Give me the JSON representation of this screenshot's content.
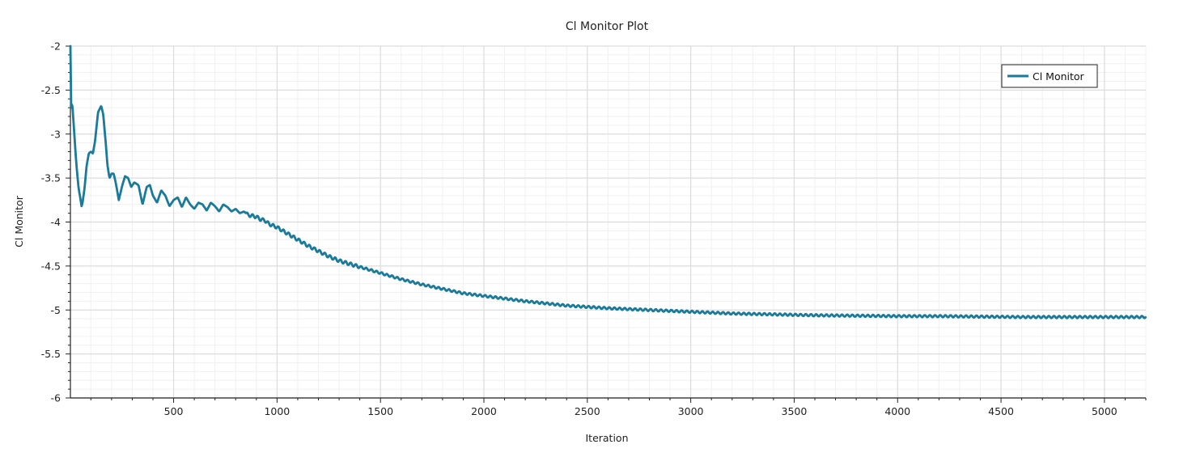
{
  "chart_data": {
    "type": "line",
    "title": "Cl Monitor Plot",
    "xlabel": "Iteration",
    "ylabel": "Cl Monitor",
    "xlim": [
      1,
      5200
    ],
    "ylim": [
      -6,
      -2
    ],
    "x_ticks": [
      500,
      1000,
      1500,
      2000,
      2500,
      3000,
      3500,
      4000,
      4500,
      5000
    ],
    "y_ticks": [
      -2,
      -2.5,
      -3,
      -3.5,
      -4,
      -4.5,
      -5,
      -5.5,
      -6
    ],
    "grid": true,
    "legend_position": "top-right",
    "series": [
      {
        "name": "Cl Monitor",
        "color": "#1a7a9a",
        "x": [
          1,
          5,
          10,
          20,
          30,
          40,
          55,
          60,
          70,
          80,
          90,
          100,
          110,
          120,
          135,
          150,
          160,
          170,
          180,
          190,
          200,
          210,
          220,
          235,
          250,
          265,
          280,
          295,
          310,
          330,
          350,
          370,
          385,
          400,
          420,
          440,
          460,
          480,
          500,
          520,
          540,
          560,
          580,
          600,
          620,
          640,
          660,
          680,
          700,
          720,
          740,
          760,
          780,
          800,
          820,
          840,
          860,
          880,
          900,
          920,
          940,
          960,
          980,
          1000,
          1050,
          1100,
          1150,
          1200,
          1250,
          1300,
          1400,
          1500,
          1600,
          1700,
          1800,
          1900,
          2000,
          2200,
          2400,
          2600,
          2800,
          3000,
          3200,
          3400,
          3600,
          3800,
          4000,
          4200,
          4400,
          4600,
          4800,
          5000,
          5200
        ],
        "y": [
          -2.0,
          -2.7,
          -2.66,
          -3.0,
          -3.35,
          -3.6,
          -3.82,
          -3.78,
          -3.6,
          -3.35,
          -3.22,
          -3.2,
          -3.22,
          -3.08,
          -2.75,
          -2.68,
          -2.78,
          -3.05,
          -3.35,
          -3.5,
          -3.45,
          -3.45,
          -3.55,
          -3.75,
          -3.6,
          -3.48,
          -3.5,
          -3.6,
          -3.55,
          -3.58,
          -3.8,
          -3.6,
          -3.58,
          -3.7,
          -3.78,
          -3.64,
          -3.7,
          -3.82,
          -3.75,
          -3.72,
          -3.83,
          -3.72,
          -3.8,
          -3.85,
          -3.78,
          -3.8,
          -3.87,
          -3.78,
          -3.82,
          -3.88,
          -3.8,
          -3.83,
          -3.88,
          -3.85,
          -3.9,
          -3.88,
          -3.92,
          -3.93,
          -3.94,
          -3.97,
          -3.98,
          -4.02,
          -4.04,
          -4.06,
          -4.13,
          -4.2,
          -4.27,
          -4.33,
          -4.39,
          -4.44,
          -4.51,
          -4.58,
          -4.65,
          -4.71,
          -4.76,
          -4.81,
          -4.84,
          -4.9,
          -4.95,
          -4.98,
          -5.0,
          -5.02,
          -5.04,
          -5.05,
          -5.06,
          -5.065,
          -5.07,
          -5.07,
          -5.075,
          -5.08,
          -5.08,
          -5.08,
          -5.08
        ]
      }
    ]
  }
}
